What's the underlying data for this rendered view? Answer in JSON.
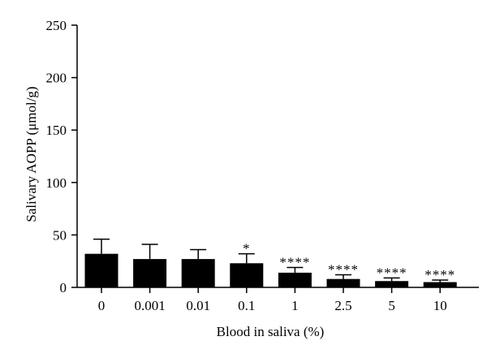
{
  "chart_data": {
    "type": "bar",
    "title": "",
    "xlabel": "Blood in saliva (%)",
    "ylabel": "Salivary AOPP (μmol/g)",
    "ylim": [
      0,
      250
    ],
    "yticks": [
      "0",
      "50",
      "100",
      "150",
      "200",
      "250"
    ],
    "categories": [
      "0",
      "0.001",
      "0.01",
      "0.1",
      "1",
      "2.5",
      "5",
      "10"
    ],
    "values": [
      32,
      27,
      27,
      23,
      14,
      8,
      6,
      5
    ],
    "error_upper": [
      14,
      14,
      9,
      9,
      5,
      4,
      3,
      2
    ],
    "significance": [
      "",
      "",
      "",
      "*",
      "****",
      "****",
      "****",
      "****"
    ],
    "bar_color": "#000000",
    "grid": false
  }
}
